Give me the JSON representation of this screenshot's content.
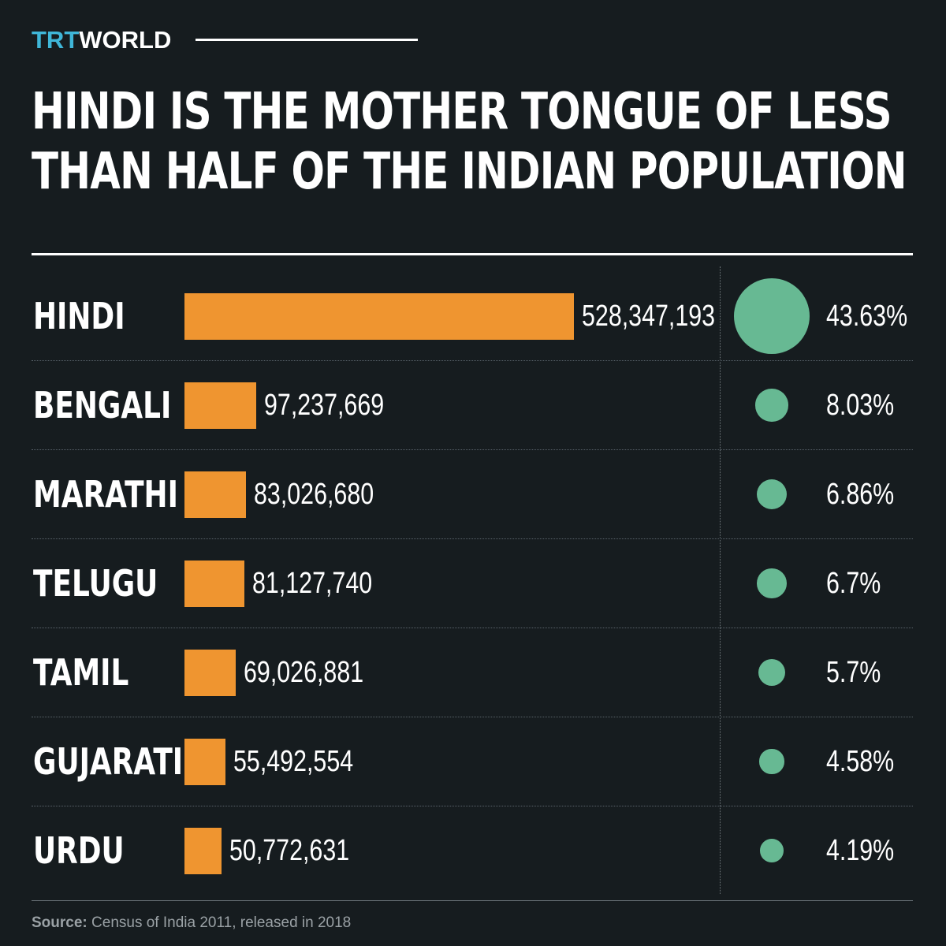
{
  "brand": {
    "trt": "TRT",
    "world": "WORLD"
  },
  "title": {
    "line1": "HINDI IS THE MOTHER TONGUE OF LESS",
    "line2": "THAN HALF OF THE INDIAN POPULATION"
  },
  "source": {
    "label": "Source:",
    "text": " Census of India 2011, released in 2018"
  },
  "colors": {
    "background": "#161c1f",
    "bar": "#ef9530",
    "dot": "#67b993",
    "brand_accent": "#3fb6d8"
  },
  "chart_data": {
    "type": "bar",
    "categories": [
      "HINDI",
      "BENGALI",
      "MARATHI",
      "TELUGU",
      "TAMIL",
      "GUJARATI",
      "URDU"
    ],
    "values": [
      528347193,
      97237669,
      83026680,
      81127740,
      69026881,
      55492554,
      50772631
    ],
    "value_labels": [
      "528,347,193",
      "97,237,669",
      "83,026,680",
      "81,127,740",
      "69,026,881",
      "55,492,554",
      "50,772,631"
    ],
    "percentages": [
      43.63,
      8.03,
      6.86,
      6.7,
      5.7,
      4.58,
      4.19
    ],
    "percentage_labels": [
      "43.63%",
      "8.03%",
      "6.86%",
      "6.7%",
      "5.7%",
      "4.58%",
      "4.19%"
    ],
    "title": "HINDI IS THE MOTHER TONGUE OF LESS THAN HALF OF THE INDIAN POPULATION",
    "orientation": "horizontal",
    "grid": false
  }
}
